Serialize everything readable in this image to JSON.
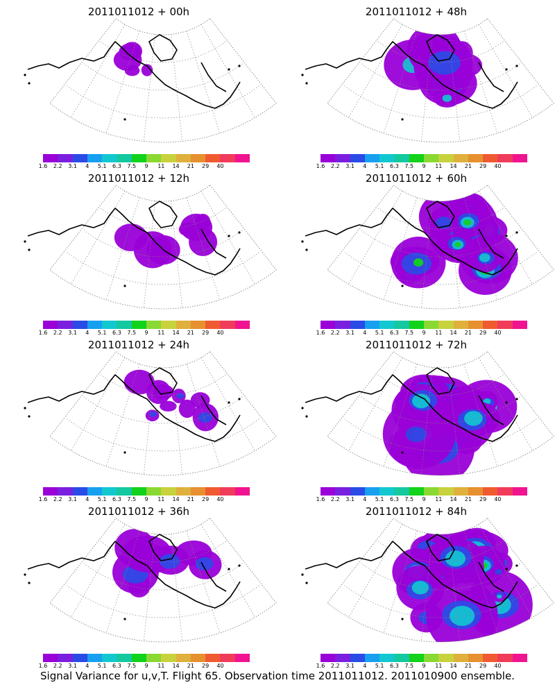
{
  "colorbar": {
    "colors": [
      "#9a00d8",
      "#7a1fe0",
      "#2a4be6",
      "#18a0f0",
      "#12c8d0",
      "#14c8a0",
      "#12d21c",
      "#8ad832",
      "#c8d23c",
      "#e0b03c",
      "#e69030",
      "#f05a30",
      "#f03c5a",
      "#f01490"
    ],
    "labels": [
      "1.6",
      "2.2",
      "3.1",
      "4",
      "5.1",
      "6.3",
      "7.5",
      "9",
      "11",
      "14",
      "21",
      "29",
      "40"
    ]
  },
  "panels": [
    {
      "title": "2011011012 + 00h",
      "intensity": 0.08
    },
    {
      "title": "2011011012 + 48h",
      "intensity": 0.55
    },
    {
      "title": "2011011012 + 12h",
      "intensity": 0.15
    },
    {
      "title": "2011011012 + 60h",
      "intensity": 0.7
    },
    {
      "title": "2011011012 + 24h",
      "intensity": 0.25
    },
    {
      "title": "2011011012 + 72h",
      "intensity": 0.8
    },
    {
      "title": "2011011012 + 36h",
      "intensity": 0.35
    },
    {
      "title": "2011011012 + 84h",
      "intensity": 0.9
    }
  ],
  "footer": "Signal Variance for u,v,T. Flight 65. Observation time 2011011012. 2011010900 ensemble."
}
